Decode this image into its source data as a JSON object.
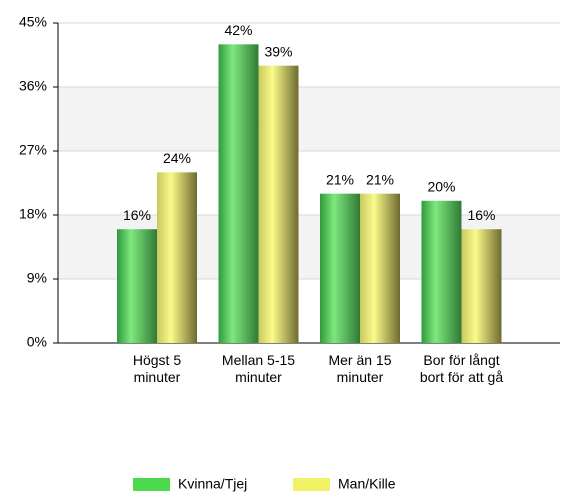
{
  "chart_data": {
    "type": "bar",
    "categories": [
      "Högst 5 minuter",
      "Mellan 5-15 minuter",
      "Mer än 15 minuter",
      "Bor för långt bort för att gå"
    ],
    "series": [
      {
        "name": "Kvinna/Tjej",
        "color": "#4cd94c",
        "values": [
          16,
          42,
          21,
          20
        ],
        "value_labels": [
          "16%",
          "42%",
          "21%",
          "20%"
        ]
      },
      {
        "name": "Man/Kille",
        "color": "#f2f266",
        "values": [
          24,
          39,
          21,
          16
        ],
        "value_labels": [
          "24%",
          "39%",
          "21%",
          "16%"
        ]
      }
    ],
    "ylim": [
      0,
      45
    ],
    "yticks": [
      {
        "value": 0,
        "label": "0%"
      },
      {
        "value": 9,
        "label": "9%"
      },
      {
        "value": 18,
        "label": "18%"
      },
      {
        "value": 27,
        "label": "27%"
      },
      {
        "value": 36,
        "label": "36%"
      },
      {
        "value": 45,
        "label": "45%"
      }
    ],
    "grid": true,
    "legend": "bottom"
  }
}
